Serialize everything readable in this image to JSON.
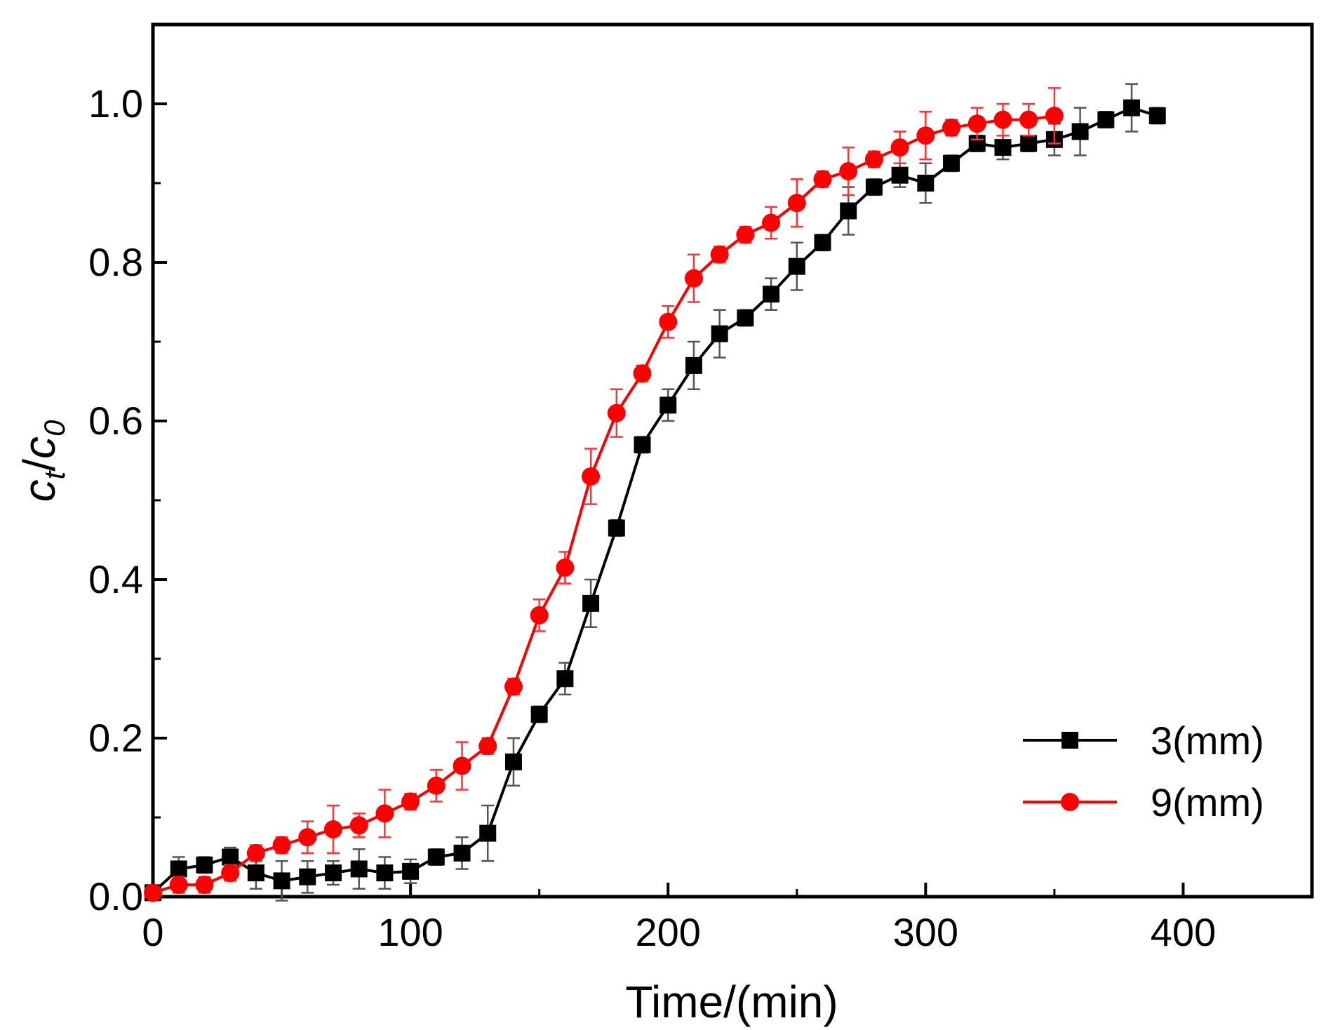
{
  "chart_data": {
    "type": "line",
    "title": "",
    "xlabel": "Time/(min)",
    "ylabel": {
      "base": "c",
      "sub1": "t",
      "slash": "/",
      "base2": "c",
      "sub2": "0"
    },
    "xlim": [
      0,
      450
    ],
    "ylim": [
      0,
      1.1
    ],
    "xticks": [
      0,
      100,
      200,
      300,
      400
    ],
    "xtick_labels": [
      "0",
      "100",
      "200",
      "300",
      "400"
    ],
    "yticks": [
      0,
      0.2,
      0.4,
      0.6,
      0.8,
      1.0
    ],
    "ytick_labels": [
      "0.0",
      "0.2",
      "0.4",
      "0.6",
      "0.8",
      "1.0"
    ],
    "grid": false,
    "legend_position": "bottom-right",
    "series": [
      {
        "name": "3(mm)",
        "color": "#000000",
        "errorbar_color": "#555555",
        "marker": "square",
        "x": [
          0,
          10,
          20,
          30,
          40,
          50,
          60,
          70,
          80,
          90,
          100,
          110,
          120,
          130,
          140,
          150,
          160,
          170,
          180,
          190,
          200,
          210,
          220,
          230,
          240,
          250,
          260,
          270,
          280,
          290,
          300,
          310,
          320,
          330,
          340,
          350,
          360,
          370,
          380,
          390
        ],
        "y": [
          0.005,
          0.035,
          0.04,
          0.05,
          0.03,
          0.02,
          0.025,
          0.03,
          0.035,
          0.03,
          0.032,
          0.05,
          0.055,
          0.08,
          0.17,
          0.23,
          0.275,
          0.37,
          0.465,
          0.57,
          0.62,
          0.67,
          0.71,
          0.73,
          0.76,
          0.795,
          0.825,
          0.865,
          0.895,
          0.91,
          0.9,
          0.925,
          0.95,
          0.945,
          0.95,
          0.955,
          0.965,
          0.98,
          0.995,
          0.985
        ],
        "error": [
          0,
          0.015,
          0.01,
          0.012,
          0.02,
          0.025,
          0.02,
          0.015,
          0.025,
          0.02,
          0.015,
          0.01,
          0.02,
          0.035,
          0.03,
          0.01,
          0.02,
          0.03,
          0.01,
          0.01,
          0.02,
          0.03,
          0.03,
          0.01,
          0.02,
          0.03,
          0.01,
          0.03,
          0.01,
          0.015,
          0.025,
          0.01,
          0.01,
          0.015,
          0.01,
          0.02,
          0.03,
          0.01,
          0.03,
          0.01
        ]
      },
      {
        "name": "9(mm)",
        "color": "#ff0000",
        "errorbar_color": "#ff3333",
        "marker": "circle",
        "x": [
          0,
          10,
          20,
          30,
          40,
          50,
          60,
          70,
          80,
          90,
          100,
          110,
          120,
          130,
          140,
          150,
          160,
          170,
          180,
          190,
          200,
          210,
          220,
          230,
          240,
          250,
          260,
          270,
          280,
          290,
          300,
          310,
          320,
          330,
          340,
          350
        ],
        "y": [
          0.005,
          0.015,
          0.015,
          0.03,
          0.055,
          0.065,
          0.075,
          0.085,
          0.09,
          0.105,
          0.12,
          0.14,
          0.165,
          0.19,
          0.265,
          0.355,
          0.415,
          0.53,
          0.61,
          0.66,
          0.725,
          0.78,
          0.81,
          0.835,
          0.85,
          0.875,
          0.905,
          0.915,
          0.93,
          0.945,
          0.96,
          0.97,
          0.975,
          0.98,
          0.98,
          0.985
        ],
        "error": [
          0,
          0.01,
          0.01,
          0.01,
          0.01,
          0.01,
          0.02,
          0.03,
          0.015,
          0.03,
          0.01,
          0.02,
          0.03,
          0.01,
          0.01,
          0.02,
          0.02,
          0.035,
          0.03,
          0.01,
          0.02,
          0.03,
          0.01,
          0.01,
          0.02,
          0.03,
          0.01,
          0.03,
          0.01,
          0.02,
          0.03,
          0.01,
          0.02,
          0.02,
          0.02,
          0.035
        ]
      }
    ]
  }
}
